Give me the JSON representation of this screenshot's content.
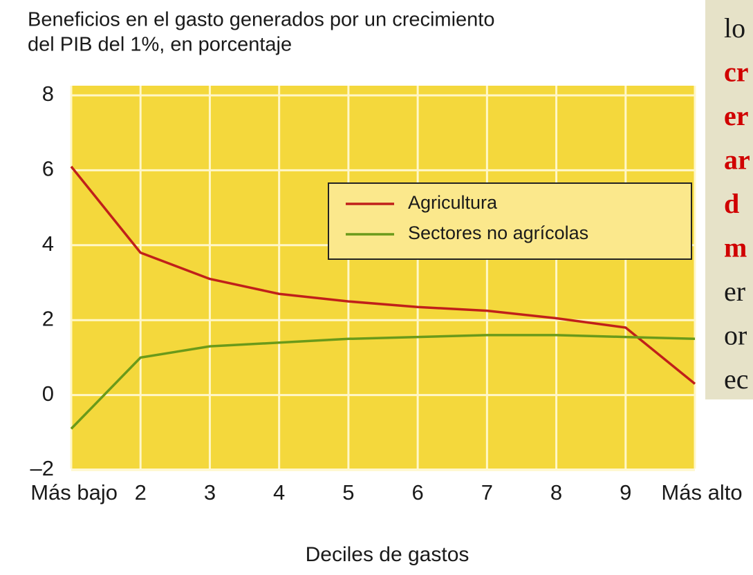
{
  "chart_data": {
    "type": "line",
    "title": [
      "Beneficios en el gasto generados por un crecimiento",
      "del PIB del 1%, en porcentaje"
    ],
    "x_label": "Deciles de gastos",
    "categories": [
      "Más bajo",
      "2",
      "3",
      "4",
      "5",
      "6",
      "7",
      "8",
      "9",
      "Más alto"
    ],
    "series": [
      {
        "name": "Agricultura",
        "color": "#c0201a",
        "values": [
          6.1,
          3.8,
          3.1,
          2.7,
          2.5,
          2.35,
          2.25,
          2.05,
          1.8,
          0.3
        ]
      },
      {
        "name": "Sectores no agrícolas",
        "color": "#6a9a1a",
        "values": [
          -0.9,
          1.0,
          1.3,
          1.4,
          1.5,
          1.55,
          1.6,
          1.6,
          1.55,
          1.5
        ]
      }
    ],
    "ylim": [
      -2,
      8
    ],
    "yticks": [
      {
        "value": -2,
        "label": "–2"
      },
      0,
      2,
      4,
      6,
      8
    ],
    "grid": true,
    "legend": "upper right",
    "background": "#f4d83c"
  },
  "side_text": {
    "lines": [
      {
        "text": "lo",
        "color": "#1a1a1a"
      },
      {
        "text": "cr",
        "color": "#d00000"
      },
      {
        "text": "er",
        "color": "#d00000"
      },
      {
        "text": "ar",
        "color": "#d00000"
      },
      {
        "text": "d",
        "color": "#d00000"
      },
      {
        "text": "m",
        "color": "#d00000"
      },
      {
        "text": "er",
        "color": "#1a1a1a"
      },
      {
        "text": "or",
        "color": "#1a1a1a"
      },
      {
        "text": "ec",
        "color": "#1a1a1a"
      }
    ]
  }
}
